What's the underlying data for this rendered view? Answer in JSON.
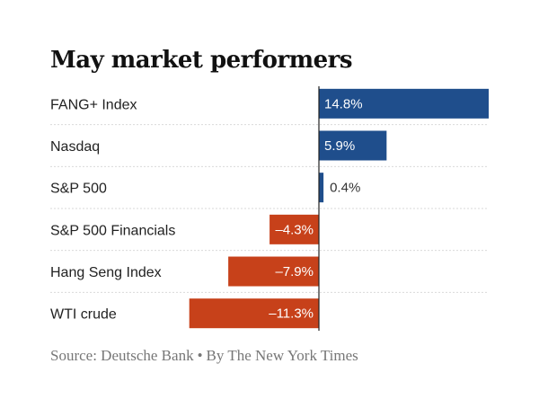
{
  "title": "May market performers",
  "footer": {
    "source": "Source: Deutsche Bank",
    "separator": "•",
    "credit": "By The New York Times"
  },
  "colors": {
    "positive": "#1f4e8c",
    "negative": "#c7411a",
    "divider": "#d9d9d9",
    "axis": "#222222"
  },
  "chart_data": {
    "type": "bar",
    "orientation": "horizontal",
    "categories": [
      "FANG+ Index",
      "Nasdaq",
      "S&P 500",
      "S&P 500 Financials",
      "Hang Seng Index",
      "WTI crude"
    ],
    "values": [
      14.8,
      5.9,
      0.4,
      -4.3,
      -7.9,
      -11.3
    ],
    "value_labels": [
      "14.8%",
      "5.9%",
      "0.4%",
      "–4.3%",
      "–7.9%",
      "–11.3%"
    ],
    "xlim": [
      -11.3,
      14.8
    ],
    "grid": false
  }
}
